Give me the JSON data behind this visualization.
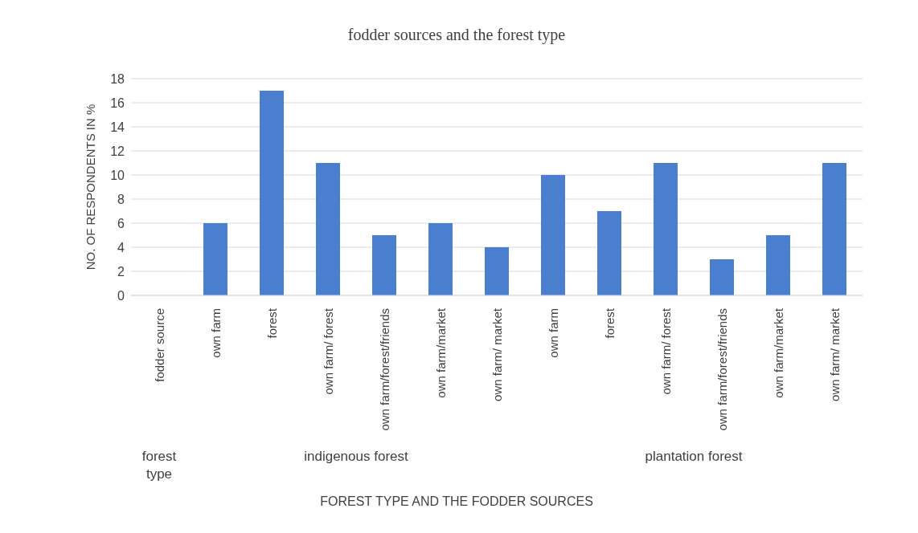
{
  "chart_data": {
    "type": "bar",
    "title": "fodder sources and the forest type",
    "xlabel": "FOREST TYPE AND THE FODDER SOURCES",
    "ylabel": "NO. OF RESPONDENTS IN %",
    "categories": [
      "fodder source",
      "own farm",
      "forest",
      "own farm/ forest",
      "own farm/forest/friends",
      "own farm/market",
      "own farm/ market",
      "own farm",
      "forest",
      "own farm/ forest",
      "own farm/forest/friends",
      "own farm/market",
      "own farm/ market"
    ],
    "values": [
      null,
      6,
      17,
      11,
      5,
      6,
      4,
      10,
      7,
      11,
      3,
      5,
      11
    ],
    "color": "#4a7fd0",
    "ylim": [
      0,
      18
    ],
    "yticks": [
      0,
      2,
      4,
      6,
      8,
      10,
      12,
      14,
      16,
      18
    ],
    "grid": "y",
    "annotations": [
      "forest type",
      "indigenous forest",
      "plantation forest"
    ]
  }
}
